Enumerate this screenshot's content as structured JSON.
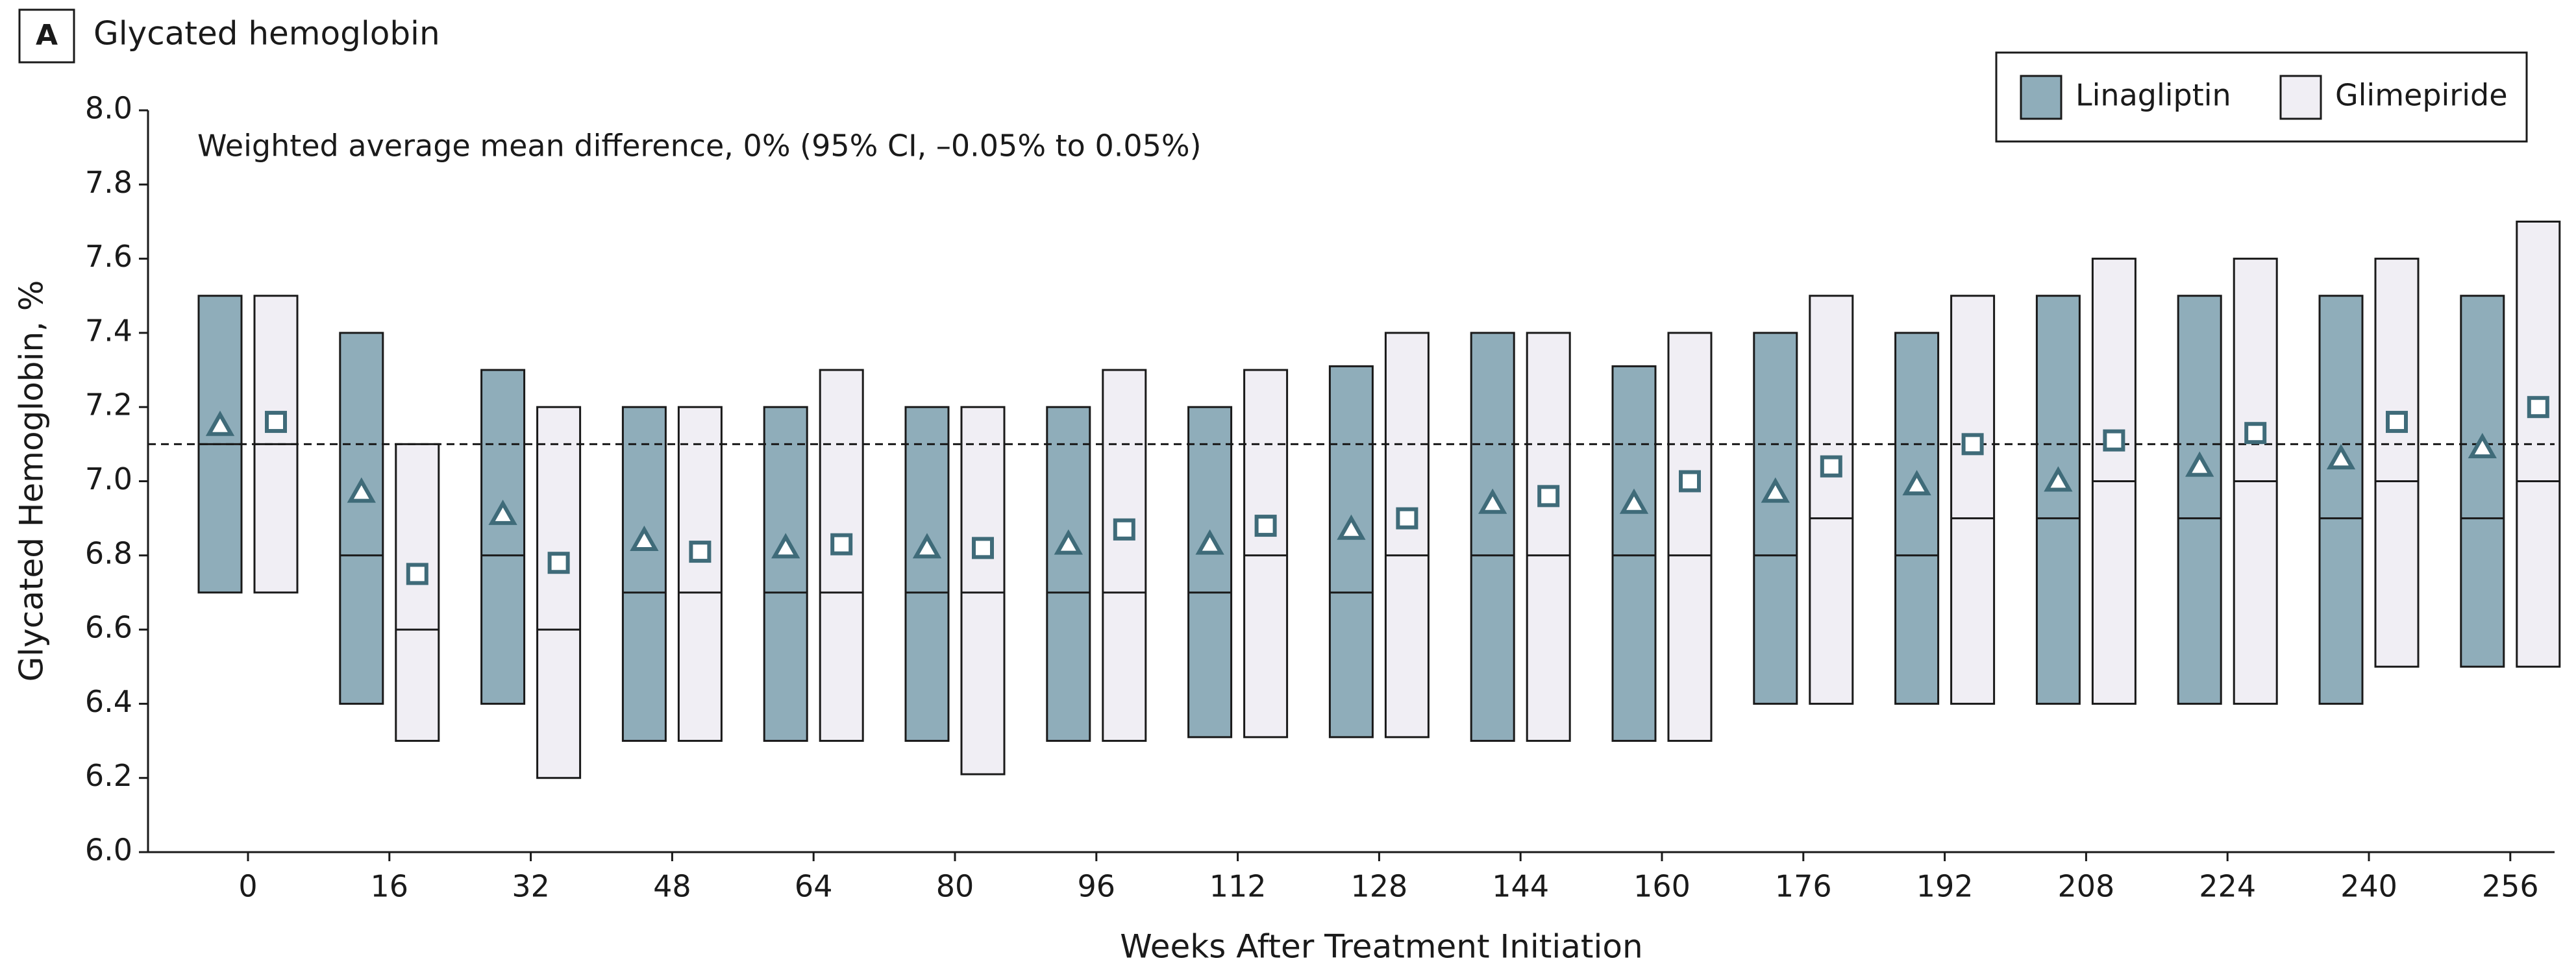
{
  "chart_data": {
    "type": "box",
    "panel_label": "A",
    "title": "Glycated hemoglobin",
    "annotation": "Weighted average mean difference, 0% (95% CI, –0.05% to 0.05%)",
    "xlabel": "Weeks After Treatment Initiation",
    "ylabel": "Glycated Hemoglobin, %",
    "categories": [
      "0",
      "16",
      "32",
      "48",
      "64",
      "80",
      "96",
      "112",
      "128",
      "144",
      "160",
      "176",
      "192",
      "208",
      "224",
      "240",
      "256"
    ],
    "ylim": [
      6.0,
      8.0
    ],
    "yticks": [
      {
        "value": 6.0,
        "label": "6.0"
      },
      {
        "value": 6.2,
        "label": "6.2"
      },
      {
        "value": 6.4,
        "label": "6.4"
      },
      {
        "value": 6.6,
        "label": "6.6"
      },
      {
        "value": 6.8,
        "label": "6.8"
      },
      {
        "value": 7.0,
        "label": "7.0"
      },
      {
        "value": 7.2,
        "label": "7.2"
      },
      {
        "value": 7.4,
        "label": "7.4"
      },
      {
        "value": 7.6,
        "label": "7.6"
      },
      {
        "value": 7.8,
        "label": "7.8"
      },
      {
        "value": 8.0,
        "label": "8.0"
      }
    ],
    "reference_line": 7.1,
    "legend": "top-right",
    "series": [
      {
        "name": "Linagliptin",
        "color": "#8fadba",
        "marker": "triangle",
        "q1": [
          6.7,
          6.4,
          6.4,
          6.3,
          6.3,
          6.3,
          6.3,
          6.31,
          6.31,
          6.3,
          6.3,
          6.4,
          6.4,
          6.4,
          6.4,
          6.4,
          6.5
        ],
        "median": [
          7.1,
          6.8,
          6.8,
          6.7,
          6.7,
          6.7,
          6.7,
          6.7,
          6.7,
          6.8,
          6.8,
          6.8,
          6.8,
          6.9,
          6.9,
          6.9,
          6.9
        ],
        "q3": [
          7.5,
          7.4,
          7.3,
          7.2,
          7.2,
          7.2,
          7.2,
          7.2,
          7.31,
          7.4,
          7.31,
          7.4,
          7.4,
          7.5,
          7.5,
          7.5,
          7.5
        ],
        "mean": [
          7.15,
          6.97,
          6.91,
          6.84,
          6.82,
          6.82,
          6.83,
          6.83,
          6.87,
          6.94,
          6.94,
          6.97,
          6.99,
          7.0,
          7.04,
          7.06,
          7.09
        ]
      },
      {
        "name": "Glimepiride",
        "color": "#f0eef4",
        "marker": "square",
        "q1": [
          6.7,
          6.3,
          6.2,
          6.3,
          6.3,
          6.21,
          6.3,
          6.31,
          6.31,
          6.3,
          6.3,
          6.4,
          6.4,
          6.4,
          6.4,
          6.5,
          6.5
        ],
        "median": [
          7.1,
          6.6,
          6.6,
          6.7,
          6.7,
          6.7,
          6.7,
          6.8,
          6.8,
          6.8,
          6.8,
          6.9,
          6.9,
          7.0,
          7.0,
          7.0,
          7.0
        ],
        "q3": [
          7.5,
          7.1,
          7.2,
          7.2,
          7.3,
          7.2,
          7.3,
          7.3,
          7.4,
          7.4,
          7.4,
          7.5,
          7.5,
          7.6,
          7.6,
          7.6,
          7.7
        ],
        "mean": [
          7.16,
          6.75,
          6.78,
          6.81,
          6.83,
          6.82,
          6.87,
          6.88,
          6.9,
          6.96,
          7.0,
          7.04,
          7.1,
          7.11,
          7.13,
          7.16,
          7.2
        ]
      }
    ]
  }
}
